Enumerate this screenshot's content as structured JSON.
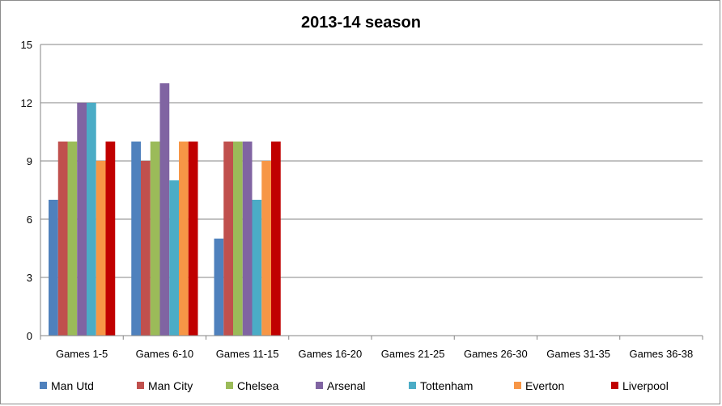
{
  "chart_data": {
    "type": "bar",
    "title": "2013-14 season",
    "xlabel": "",
    "ylabel": "",
    "ylim": [
      0,
      15
    ],
    "yticks": [
      0,
      3,
      6,
      9,
      12,
      15
    ],
    "grid": true,
    "legend_position": "bottom",
    "categories": [
      "Games 1-5",
      "Games 6-10",
      "Games 11-15",
      "Games 16-20",
      "Games 21-25",
      "Games 26-30",
      "Games 31-35",
      "Games 36-38"
    ],
    "series": [
      {
        "name": "Man Utd",
        "color": "#4f81bd",
        "values": [
          7,
          10,
          5,
          null,
          null,
          null,
          null,
          null
        ]
      },
      {
        "name": "Man City",
        "color": "#c0504d",
        "values": [
          10,
          9,
          10,
          null,
          null,
          null,
          null,
          null
        ]
      },
      {
        "name": "Chelsea",
        "color": "#9bbb59",
        "values": [
          10,
          10,
          10,
          null,
          null,
          null,
          null,
          null
        ]
      },
      {
        "name": "Arsenal",
        "color": "#8064a2",
        "values": [
          12,
          13,
          10,
          null,
          null,
          null,
          null,
          null
        ]
      },
      {
        "name": "Tottenham",
        "color": "#4bacc6",
        "values": [
          12,
          8,
          7,
          null,
          null,
          null,
          null,
          null
        ]
      },
      {
        "name": "Everton",
        "color": "#f79646",
        "values": [
          9,
          10,
          9,
          null,
          null,
          null,
          null,
          null
        ]
      },
      {
        "name": "Liverpool",
        "color": "#c00000",
        "values": [
          10,
          10,
          10,
          null,
          null,
          null,
          null,
          null
        ]
      }
    ]
  }
}
